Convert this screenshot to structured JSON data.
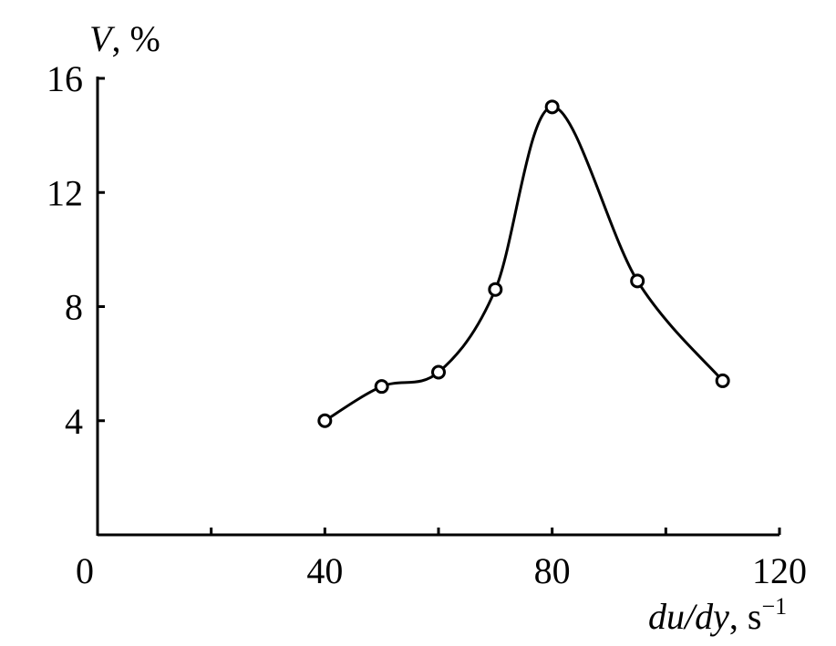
{
  "chart_data": {
    "type": "line",
    "x": [
      40,
      50,
      60,
      70,
      80,
      95,
      110
    ],
    "y": [
      4.0,
      5.2,
      5.7,
      8.6,
      15.0,
      8.9,
      5.4
    ],
    "xlim": [
      0,
      120
    ],
    "ylim": [
      0,
      16
    ],
    "x_ticks": [
      0,
      20,
      40,
      60,
      80,
      100,
      120
    ],
    "y_ticks": [
      4,
      8,
      12,
      16
    ],
    "x_tick_labels": [
      "0",
      "40",
      "80",
      "120"
    ],
    "y_tick_labels": [
      "4",
      "8",
      "12",
      "16"
    ],
    "ylabel": {
      "var": "V",
      "unit": ", %"
    },
    "xlabel": {
      "var": "du/dy",
      "unit": ", s",
      "exp": "−1"
    },
    "marker": "open-circle",
    "smooth": true,
    "grid": false,
    "line_color": "#000000"
  }
}
